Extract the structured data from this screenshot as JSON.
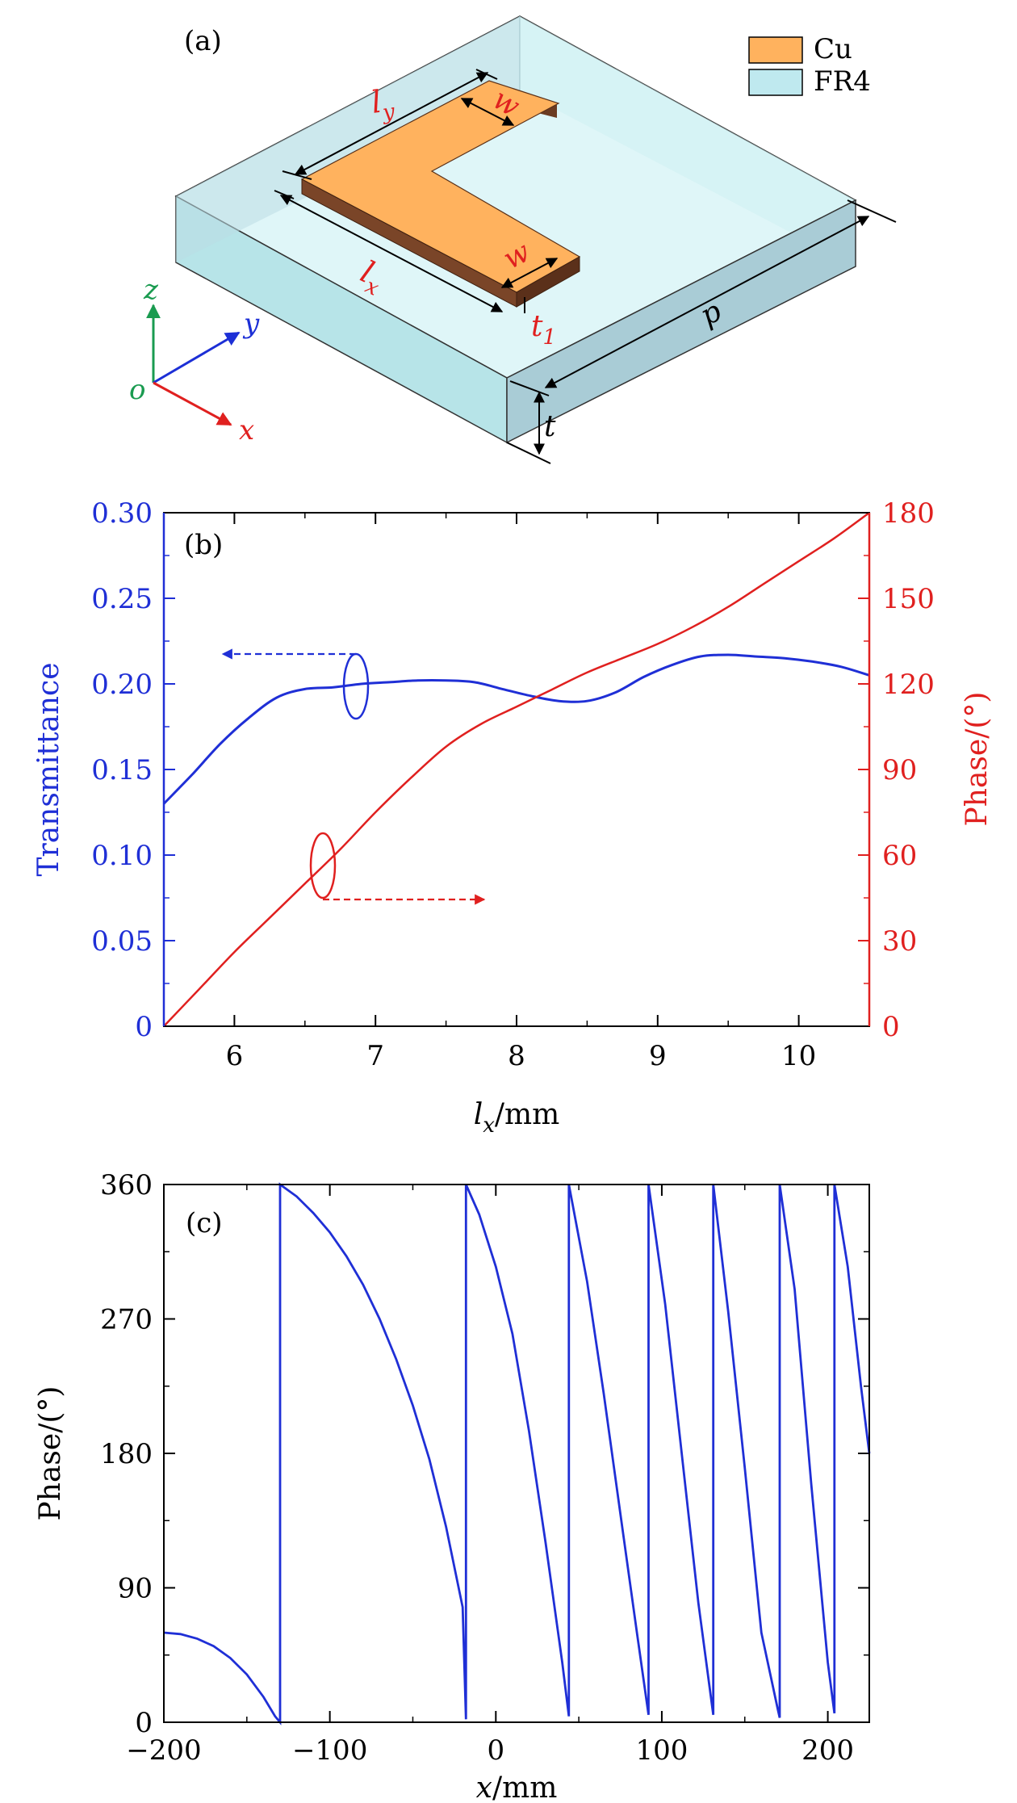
{
  "panel_a": {
    "label": "(a)",
    "legend": [
      {
        "label": "Cu",
        "color": "#ffb25e"
      },
      {
        "label": "FR4",
        "color": "#bfe9ef"
      }
    ],
    "dimension_labels": {
      "ly_base": "l",
      "ly_sub": "y",
      "w_top": "w",
      "lx_base": "l",
      "lx_sub": "x",
      "w_bottom": "w",
      "t1_base": "t",
      "t1_sub": "1",
      "p": "p",
      "t": "t"
    },
    "axes_labels": {
      "z": "z",
      "y": "y",
      "x": "x",
      "o": "o"
    },
    "colors": {
      "z": "#1a9b50",
      "y": "#1c2fd6",
      "x": "#e0201f",
      "dim_red": "#e0201f"
    }
  },
  "chart_data": [
    {
      "type": "line",
      "panel_label": "(b)",
      "xlabel_base": "l",
      "xlabel_sub": "x",
      "xlabel_unit": "/mm",
      "ylabel_left": "Transmittance",
      "ylabel_right": "Phase/(°)",
      "xlim": [
        5.5,
        10.5
      ],
      "ylim_left": [
        0,
        0.3
      ],
      "ylim_right": [
        0,
        180
      ],
      "xticks": [
        6,
        7,
        8,
        9,
        10
      ],
      "yticks_left": [
        0,
        0.05,
        0.1,
        0.15,
        0.2,
        0.25,
        0.3
      ],
      "yticks_left_labels": [
        "0",
        "0.05",
        "0.10",
        "0.15",
        "0.20",
        "0.25",
        "0.30"
      ],
      "yticks_right": [
        0,
        30,
        60,
        90,
        120,
        150,
        180
      ],
      "yticks_right_labels": [
        "0",
        "30",
        "60",
        "90",
        "120",
        "150",
        "180"
      ],
      "grid": false,
      "series": [
        {
          "axis": "left",
          "color": "#1f2fd6",
          "x": [
            5.5,
            5.7,
            5.9,
            6.1,
            6.3,
            6.5,
            6.7,
            6.9,
            7.1,
            7.3,
            7.5,
            7.7,
            7.9,
            8.1,
            8.3,
            8.5,
            8.7,
            8.9,
            9.1,
            9.3,
            9.5,
            9.7,
            9.9,
            10.1,
            10.3,
            10.5
          ],
          "values": [
            0.13,
            0.147,
            0.165,
            0.18,
            0.192,
            0.197,
            0.198,
            0.2,
            0.201,
            0.202,
            0.202,
            0.201,
            0.197,
            0.193,
            0.19,
            0.19,
            0.195,
            0.204,
            0.211,
            0.216,
            0.217,
            0.216,
            0.215,
            0.213,
            0.21,
            0.205
          ]
        },
        {
          "axis": "right",
          "color": "#e0201f",
          "x": [
            5.5,
            5.75,
            6.0,
            6.25,
            6.5,
            6.75,
            7.0,
            7.25,
            7.5,
            7.75,
            8.0,
            8.25,
            8.5,
            8.75,
            9.0,
            9.25,
            9.5,
            9.75,
            10.0,
            10.25,
            10.5
          ],
          "values": [
            0,
            13,
            26,
            38,
            50,
            62,
            75,
            87,
            98,
            106,
            112,
            118,
            124,
            129,
            134,
            140,
            147,
            155,
            163,
            171,
            180
          ]
        }
      ]
    },
    {
      "type": "line",
      "panel_label": "(c)",
      "xlabel_base": "x",
      "xlabel_unit": "/mm",
      "ylabel": "Phase/(°)",
      "xlim": [
        -200,
        225
      ],
      "ylim": [
        0,
        360
      ],
      "xticks": [
        -200,
        -100,
        0,
        100,
        200
      ],
      "xtick_labels": [
        "−200",
        "−100",
        "0",
        "100",
        "200"
      ],
      "yticks": [
        0,
        90,
        180,
        270,
        360
      ],
      "grid": false,
      "series": [
        {
          "color": "#1f2fd6",
          "x": [
            -200,
            -190,
            -180,
            -170,
            -160,
            -150,
            -140,
            -133,
            -130,
            -130,
            -120,
            -110,
            -100,
            -90,
            -80,
            -70,
            -60,
            -50,
            -40,
            -30,
            -20,
            -18,
            -18,
            -10,
            0,
            10,
            20,
            30,
            40,
            44,
            44,
            55,
            65,
            75,
            85,
            92,
            92,
            102,
            112,
            122,
            131,
            131,
            140,
            150,
            160,
            170,
            171,
            171,
            180,
            190,
            200,
            204,
            204,
            212,
            220,
            225
          ],
          "values": [
            60,
            59,
            56,
            51,
            43,
            32,
            17,
            4,
            0,
            360,
            352,
            341,
            328,
            312,
            293,
            270,
            243,
            212,
            176,
            131,
            77,
            2,
            360,
            340,
            305,
            260,
            195,
            120,
            40,
            4,
            360,
            295,
            220,
            140,
            60,
            5,
            360,
            280,
            180,
            80,
            5,
            360,
            275,
            170,
            60,
            8,
            3,
            360,
            290,
            160,
            40,
            6,
            360,
            305,
            225,
            180
          ]
        }
      ]
    }
  ]
}
